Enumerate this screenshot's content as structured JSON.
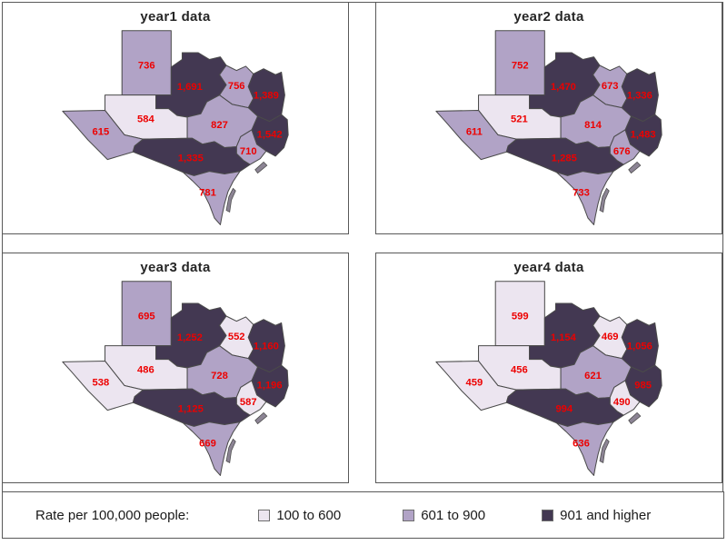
{
  "panels": [
    {
      "title": "year1 data",
      "values": {
        "panhandle": "736",
        "north_central": "1,691",
        "northeast": "756",
        "east": "1,389",
        "deep_east": "1,542",
        "west_central": "584",
        "central": "827",
        "far_west": "615",
        "gulf_coast": "710",
        "south_central": "1,335",
        "south": "781"
      }
    },
    {
      "title": "year2 data",
      "values": {
        "panhandle": "752",
        "north_central": "1,470",
        "northeast": "673",
        "east": "1,336",
        "deep_east": "1,483",
        "west_central": "521",
        "central": "814",
        "far_west": "611",
        "gulf_coast": "676",
        "south_central": "1,285",
        "south": "733"
      }
    },
    {
      "title": "year3 data",
      "values": {
        "panhandle": "695",
        "north_central": "1,252",
        "northeast": "552",
        "east": "1,160",
        "deep_east": "1,196",
        "west_central": "486",
        "central": "728",
        "far_west": "538",
        "gulf_coast": "587",
        "south_central": "1,125",
        "south": "669"
      }
    },
    {
      "title": "year4 data",
      "values": {
        "panhandle": "599",
        "north_central": "1,154",
        "northeast": "469",
        "east": "1,056",
        "deep_east": "985",
        "west_central": "456",
        "central": "621",
        "far_west": "459",
        "gulf_coast": "490",
        "south_central": "994",
        "south": "636"
      }
    }
  ],
  "legend": {
    "prompt": "Rate per 100,000 people:",
    "items": [
      {
        "label": "100 to 600",
        "color": "#ECE5F0",
        "max": 600
      },
      {
        "label": "601 to 900",
        "color": "#B1A3C6",
        "max": 900
      },
      {
        "label": "901 and higher",
        "color": "#433852",
        "max": null
      }
    ]
  },
  "colors": {
    "value_label": "#ED0000",
    "region_border": "#4A4A4A",
    "panel_border": "#595959",
    "title_text": "#262626"
  },
  "chart_data": {
    "type": "choropleth",
    "title": "Rate per 100,000 people by Texas public-health region, small multiples year1-year4",
    "geography": "Texas regions",
    "regions": [
      "panhandle",
      "north_central",
      "northeast",
      "east",
      "deep_east",
      "west_central",
      "central",
      "far_west",
      "gulf_coast",
      "south_central",
      "south"
    ],
    "series": [
      {
        "name": "year1 data",
        "values": [
          736,
          1691,
          756,
          1389,
          1542,
          584,
          827,
          615,
          710,
          1335,
          781
        ]
      },
      {
        "name": "year2 data",
        "values": [
          752,
          1470,
          673,
          1336,
          1483,
          521,
          814,
          611,
          676,
          1285,
          733
        ]
      },
      {
        "name": "year3 data",
        "values": [
          695,
          1252,
          552,
          1160,
          1196,
          486,
          728,
          538,
          587,
          1125,
          669
        ]
      },
      {
        "name": "year4 data",
        "values": [
          599,
          1154,
          469,
          1056,
          985,
          456,
          621,
          459,
          490,
          994,
          636
        ]
      }
    ],
    "bins": [
      {
        "label": "100 to 600",
        "range": [
          100,
          600
        ],
        "color": "#ECE5F0"
      },
      {
        "label": "601 to 900",
        "range": [
          601,
          900
        ],
        "color": "#B1A3C6"
      },
      {
        "label": "901 and higher",
        "range": [
          901,
          null
        ],
        "color": "#433852"
      }
    ],
    "legend_position": "bottom",
    "value_labels": "shown in red on each region"
  }
}
